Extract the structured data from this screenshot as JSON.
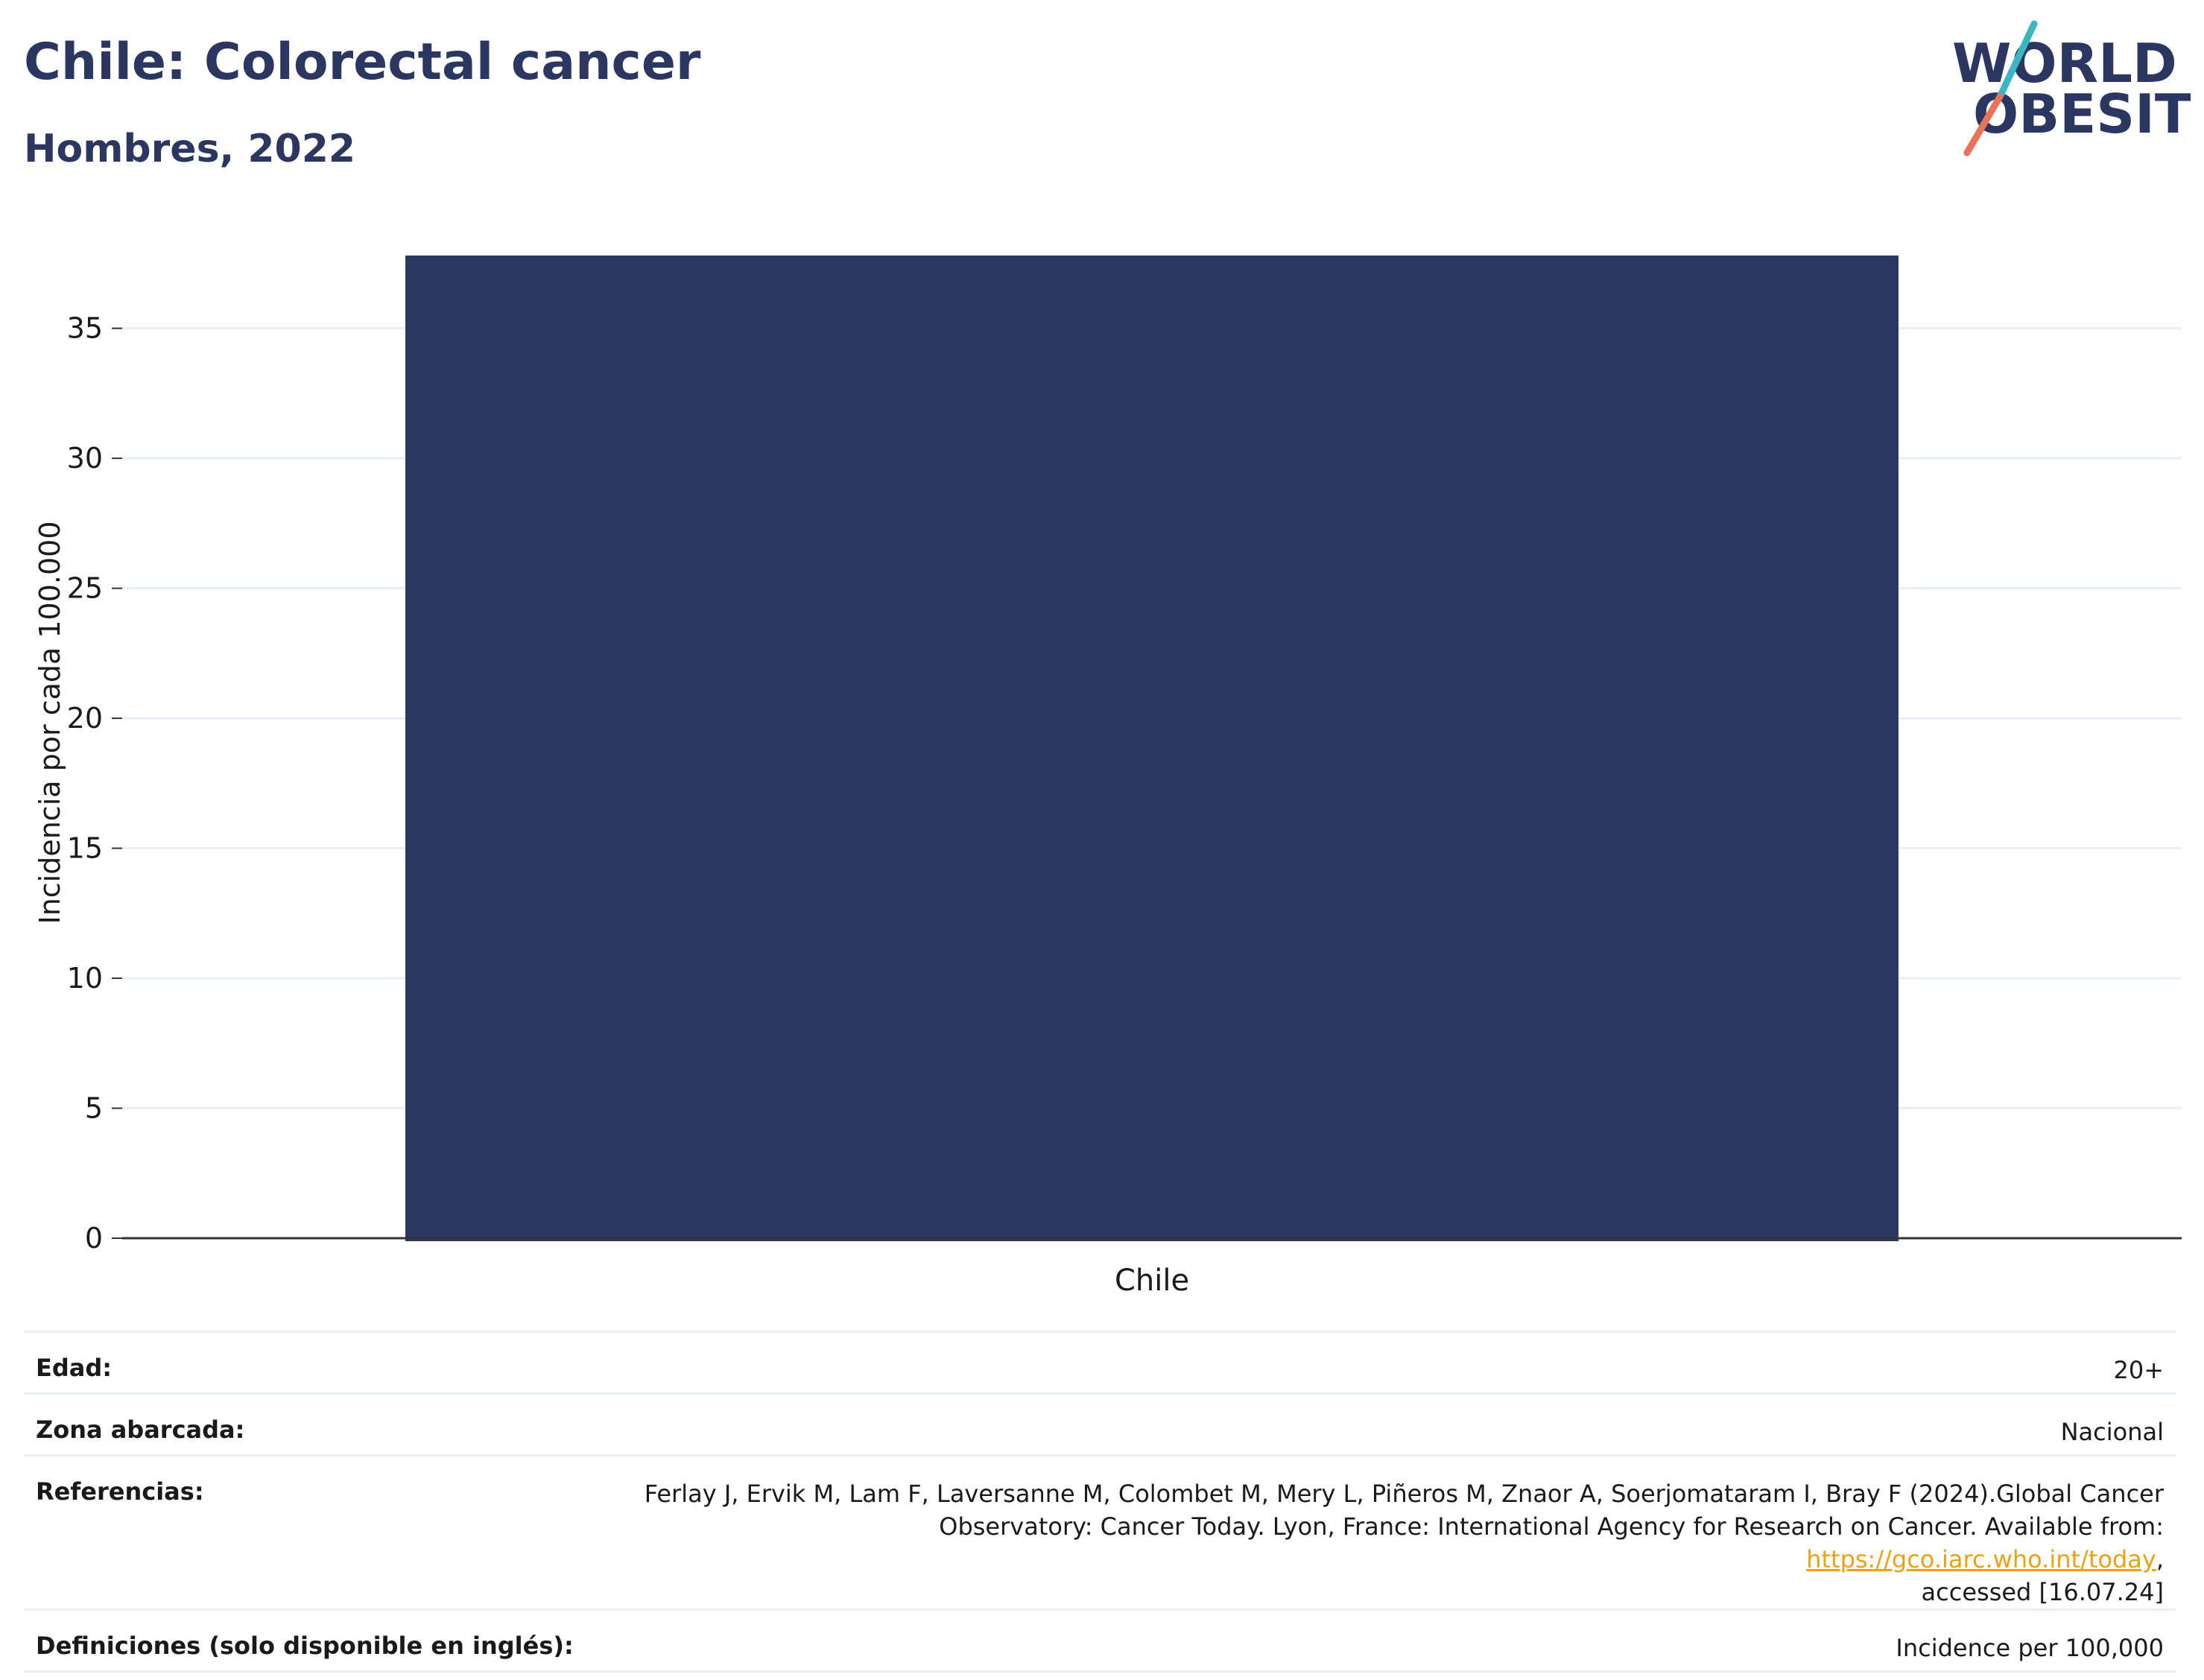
{
  "header": {
    "title": "Chile: Colorectal cancer",
    "subtitle": "Hombres, 2022"
  },
  "logo": {
    "line1": "WORLD",
    "line2": "OBESITY",
    "accent_top": "#3cb6c2",
    "accent_bottom": "#e8735a"
  },
  "colors": {
    "bar": "#2b3661",
    "text": "#2b3661",
    "grid": "#e8eef4",
    "link": "#e8a317"
  },
  "chart_data": {
    "type": "bar",
    "categories": [
      "Chile"
    ],
    "values": [
      37.8
    ],
    "ylabel": "Incidencia por cada 100.000",
    "xlabel": "",
    "ylim": [
      0,
      38
    ],
    "yticks": [
      0,
      5,
      10,
      15,
      20,
      25,
      30,
      35
    ],
    "grid": true,
    "legend": "none"
  },
  "meta": {
    "age_label": "Edad:",
    "age_value": "20+",
    "area_label": "Zona abarcada:",
    "area_value": "Nacional",
    "refs_label": "Referencias:",
    "refs_text_1": "Ferlay J, Ervik M, Lam F, Laversanne M, Colombet M, Mery L, Piñeros M, Znaor A, Soerjomataram I, Bray F (2024).Global Cancer",
    "refs_text_2": "Observatory: Cancer Today. Lyon, France: International Agency for Research on Cancer. Available from: ",
    "refs_link": "https://gco.iarc.who.int/today",
    "refs_text_3": ",",
    "refs_text_4": "accessed [16.07.24]",
    "defs_label": "Definiciones (solo disponible en inglés):",
    "defs_value": "Incidence per 100,000"
  }
}
